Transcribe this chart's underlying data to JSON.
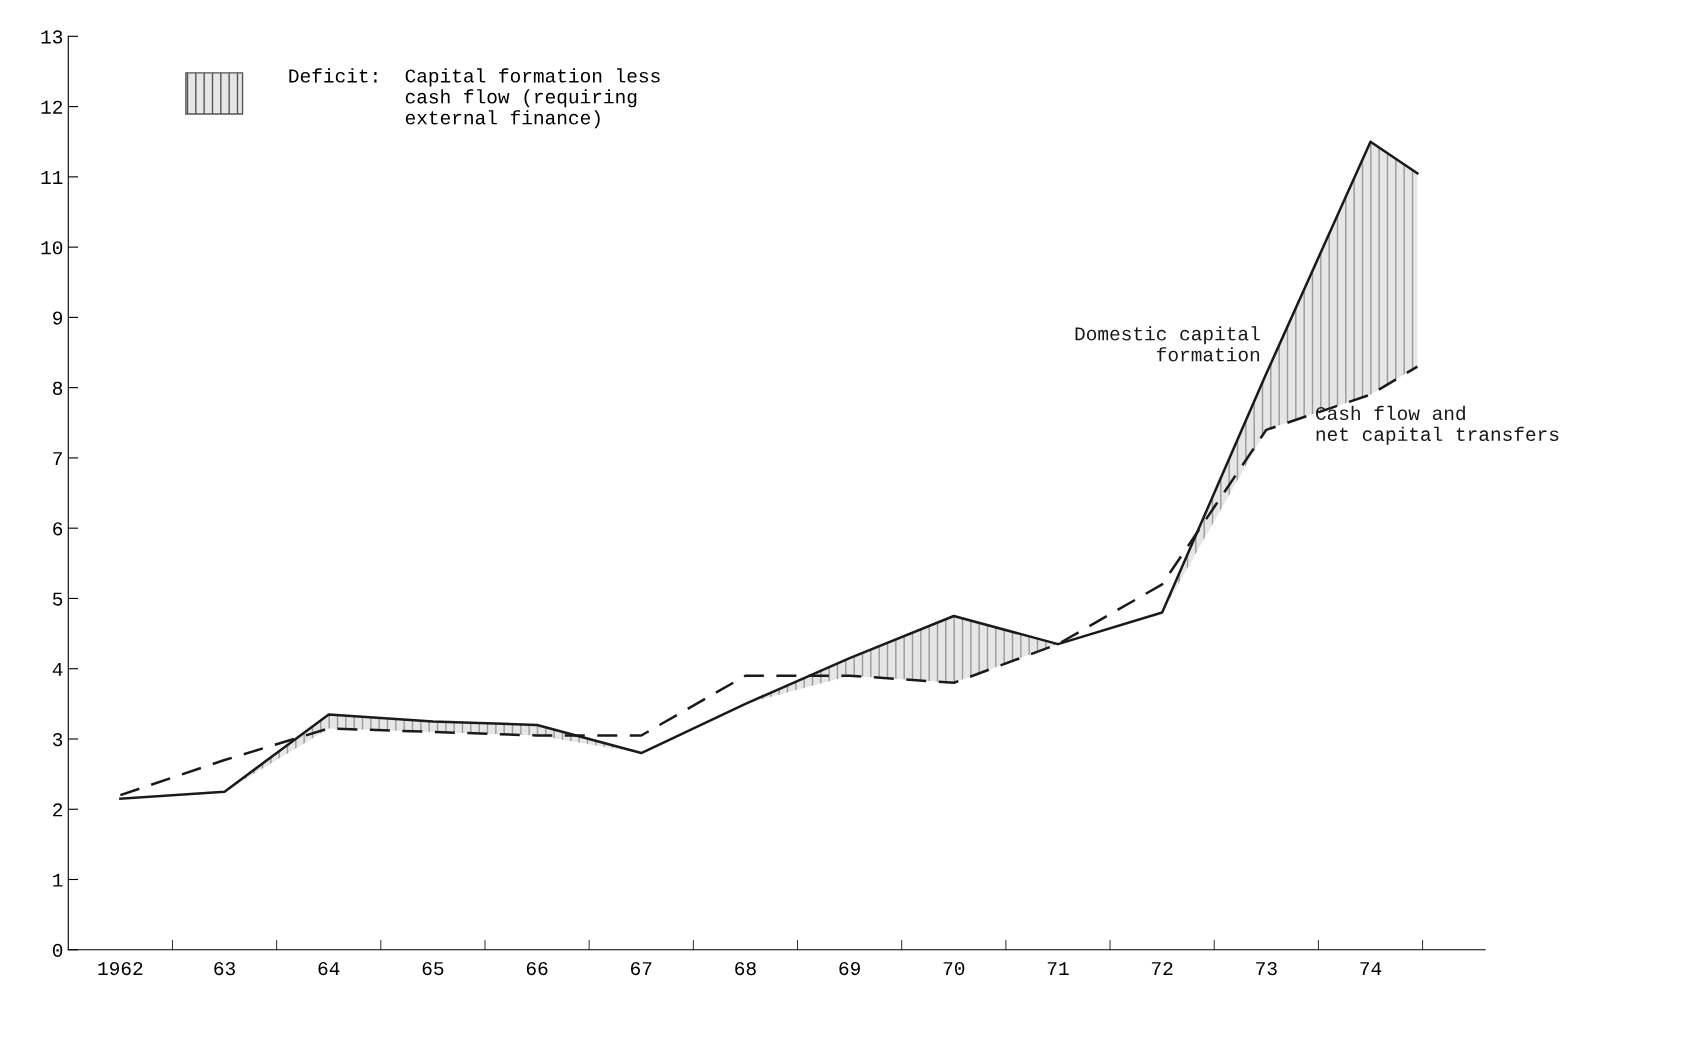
{
  "chart_data": {
    "type": "line",
    "x": [
      1962,
      1963,
      1964,
      1965,
      1966,
      1967,
      1968,
      1969,
      1970,
      1971,
      1972,
      1973,
      1974,
      1974.45
    ],
    "series": [
      {
        "name": "Domestic capital\nformation",
        "type": "line",
        "line_style": "solid",
        "color": "#1a1a1a",
        "values": [
          2.15,
          2.25,
          3.35,
          3.25,
          3.2,
          2.8,
          3.5,
          4.15,
          4.75,
          4.35,
          4.8,
          8.2,
          11.5,
          11.05
        ],
        "lower": [
          2.15,
          2.25,
          3.15,
          3.1,
          3.05,
          2.8,
          3.5,
          3.9,
          3.8,
          4.35,
          4.8,
          7.4,
          7.9,
          8.3
        ],
        "upper": [
          2.15,
          2.25,
          3.35,
          3.25,
          3.2,
          2.8,
          3.5,
          4.15,
          4.75,
          4.35,
          4.8,
          8.2,
          11.5,
          11.05
        ]
      },
      {
        "name": "Cash flow and\nnet capital transfers",
        "type": "line",
        "line_style": "dashed",
        "color": "#1a1a1a",
        "values": [
          2.2,
          2.7,
          3.15,
          3.1,
          3.05,
          3.05,
          3.9,
          3.9,
          3.8,
          4.35,
          5.2,
          7.4,
          7.9,
          8.3
        ]
      }
    ],
    "annotations": [
      "Deficit:  Capital formation less\n          cash flow (requiring\n          external finance)"
    ],
    "xlim": [
      1961.5,
      1975.1
    ],
    "xticks": [
      {
        "value": 1962,
        "label": "1962"
      },
      {
        "value": 1963,
        "label": "63"
      },
      {
        "value": 1964,
        "label": "64"
      },
      {
        "value": 1965,
        "label": "65"
      },
      {
        "value": 1966,
        "label": "66"
      },
      {
        "value": 1967,
        "label": "67"
      },
      {
        "value": 1968,
        "label": "68"
      },
      {
        "value": 1969,
        "label": "69"
      },
      {
        "value": 1970,
        "label": "70"
      },
      {
        "value": 1971,
        "label": "71"
      },
      {
        "value": 1972,
        "label": "72"
      },
      {
        "value": 1973,
        "label": "73"
      },
      {
        "value": 1974,
        "label": "74"
      },
      {
        "value": 1962.5,
        "label": null
      },
      {
        "value": 1963.5,
        "label": null
      },
      {
        "value": 1964.5,
        "label": null
      },
      {
        "value": 1965.5,
        "label": null
      },
      {
        "value": 1966.5,
        "label": null
      },
      {
        "value": 1967.5,
        "label": null
      },
      {
        "value": 1968.5,
        "label": null
      },
      {
        "value": 1969.5,
        "label": null
      },
      {
        "value": 1970.5,
        "label": null
      },
      {
        "value": 1971.5,
        "label": null
      },
      {
        "value": 1972.5,
        "label": null
      },
      {
        "value": 1973.5,
        "label": null
      },
      {
        "value": 1974.5,
        "label": null
      }
    ],
    "ylim": [
      0,
      13
    ],
    "yticks": [
      0,
      1,
      2,
      3,
      4,
      5,
      6,
      7,
      8,
      9,
      10,
      11,
      12,
      13
    ],
    "grid": false
  }
}
